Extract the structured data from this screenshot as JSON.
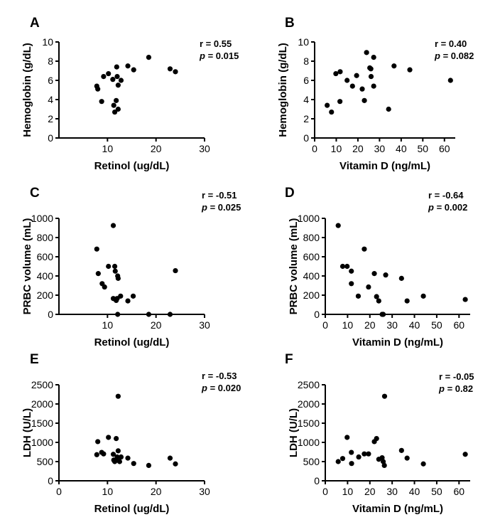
{
  "chart_data": [
    {
      "panel": "A",
      "type": "scatter",
      "xlabel": "Retinol (ug/dL)",
      "ylabel": "Hemoglobin (g/dL)",
      "xlim": [
        0,
        30
      ],
      "ylim": [
        0,
        10
      ],
      "xticks": [
        10,
        20,
        30
      ],
      "yticks": [
        0,
        2,
        4,
        6,
        8,
        10
      ],
      "stats": {
        "r": "r = 0.55",
        "p_label": "p",
        "p_value": " = 0.015"
      },
      "points": [
        [
          7.8,
          5.4
        ],
        [
          8.0,
          5.1
        ],
        [
          8.8,
          3.8
        ],
        [
          9.2,
          6.4
        ],
        [
          10.2,
          6.7
        ],
        [
          11.1,
          6.1
        ],
        [
          11.3,
          3.4
        ],
        [
          11.5,
          2.7
        ],
        [
          11.8,
          3.9
        ],
        [
          11.9,
          7.4
        ],
        [
          12.0,
          6.4
        ],
        [
          12.2,
          5.5
        ],
        [
          12.2,
          3.0
        ],
        [
          12.8,
          6.0
        ],
        [
          14.2,
          7.5
        ],
        [
          15.4,
          7.1
        ],
        [
          18.5,
          8.4
        ],
        [
          22.9,
          7.2
        ],
        [
          24.0,
          6.9
        ]
      ]
    },
    {
      "panel": "B",
      "type": "scatter",
      "xlabel": "Vitamin D (ng/mL)",
      "ylabel": "Hemoglobin (g/dL)",
      "xlim": [
        0,
        65
      ],
      "ylim": [
        0,
        10
      ],
      "xticks": [
        0,
        10,
        20,
        30,
        40,
        50,
        60
      ],
      "yticks": [
        0,
        2,
        4,
        6,
        8,
        10
      ],
      "stats": {
        "r": "r = 0.40",
        "p_label": "p",
        "p_value": " = 0.082"
      },
      "points": [
        [
          5.8,
          3.4
        ],
        [
          7.8,
          2.7
        ],
        [
          9.8,
          6.7
        ],
        [
          11.8,
          6.9
        ],
        [
          11.7,
          3.8
        ],
        [
          15.0,
          6.0
        ],
        [
          17.5,
          5.4
        ],
        [
          19.4,
          6.5
        ],
        [
          22.0,
          5.1
        ],
        [
          23.0,
          3.9
        ],
        [
          24.0,
          8.9
        ],
        [
          25.5,
          7.3
        ],
        [
          26.0,
          7.2
        ],
        [
          26.1,
          6.4
        ],
        [
          27.3,
          8.4
        ],
        [
          27.3,
          5.4
        ],
        [
          34.2,
          3.0
        ],
        [
          36.7,
          7.5
        ],
        [
          44.0,
          7.1
        ],
        [
          62.8,
          6.0
        ]
      ]
    },
    {
      "panel": "C",
      "type": "scatter",
      "xlabel": "Retinol (ug/dL)",
      "ylabel": "PRBC volume (mL)",
      "xlim": [
        0,
        30
      ],
      "ylim": [
        0,
        1000
      ],
      "xticks": [
        10,
        20,
        30
      ],
      "yticks": [
        0,
        200,
        400,
        600,
        800,
        1000
      ],
      "stats": {
        "r": "r = -0.51",
        "p_label": "p",
        "p_value": " = 0.025"
      },
      "points": [
        [
          7.8,
          680
        ],
        [
          8.1,
          425
        ],
        [
          8.9,
          320
        ],
        [
          9.4,
          285
        ],
        [
          10.2,
          500
        ],
        [
          11.2,
          925
        ],
        [
          11.2,
          165
        ],
        [
          11.5,
          500
        ],
        [
          11.6,
          450
        ],
        [
          11.8,
          145
        ],
        [
          12.0,
          165
        ],
        [
          12.1,
          400
        ],
        [
          12.1,
          0
        ],
        [
          12.2,
          375
        ],
        [
          12.7,
          190
        ],
        [
          14.2,
          140
        ],
        [
          15.3,
          190
        ],
        [
          18.5,
          0
        ],
        [
          22.9,
          0
        ],
        [
          24.0,
          455
        ]
      ]
    },
    {
      "panel": "D",
      "type": "scatter",
      "xlabel": "Vitamin D (ng/mL)",
      "ylabel": "PRBC volume (mL)",
      "xlim": [
        0,
        65
      ],
      "ylim": [
        0,
        1000
      ],
      "xticks": [
        0,
        10,
        20,
        30,
        40,
        50,
        60
      ],
      "yticks": [
        0,
        200,
        400,
        600,
        800,
        1000
      ],
      "stats": {
        "r": "r = -0.64",
        "p_label": "p",
        "p_value": " = 0.002"
      },
      "points": [
        [
          5.8,
          925
        ],
        [
          7.8,
          500
        ],
        [
          9.8,
          500
        ],
        [
          11.7,
          450
        ],
        [
          11.7,
          320
        ],
        [
          14.8,
          190
        ],
        [
          17.5,
          680
        ],
        [
          19.4,
          285
        ],
        [
          22.0,
          425
        ],
        [
          23.0,
          185
        ],
        [
          24.0,
          140
        ],
        [
          25.5,
          0
        ],
        [
          26.0,
          0
        ],
        [
          27.1,
          410
        ],
        [
          34.2,
          375
        ],
        [
          36.7,
          140
        ],
        [
          44.0,
          190
        ],
        [
          62.8,
          155
        ]
      ]
    },
    {
      "panel": "E",
      "type": "scatter",
      "xlabel": "Retinol (ug/dL)",
      "ylabel": "LDH (U/L)",
      "xlim": [
        0,
        30
      ],
      "ylim": [
        0,
        2500
      ],
      "xticks": [
        0,
        10,
        20,
        30
      ],
      "yticks": [
        0,
        500,
        1000,
        1500,
        2000,
        2500
      ],
      "stats": {
        "r": "r = -0.53",
        "p_label": "p",
        "p_value": " = 0.020"
      },
      "points": [
        [
          7.8,
          680
        ],
        [
          8.0,
          1020
        ],
        [
          8.8,
          740
        ],
        [
          9.2,
          700
        ],
        [
          10.2,
          1130
        ],
        [
          11.2,
          690
        ],
        [
          11.3,
          540
        ],
        [
          11.5,
          500
        ],
        [
          11.8,
          1100
        ],
        [
          11.9,
          560
        ],
        [
          12.0,
          620
        ],
        [
          12.2,
          2200
        ],
        [
          12.2,
          780
        ],
        [
          12.5,
          500
        ],
        [
          12.8,
          620
        ],
        [
          14.2,
          590
        ],
        [
          15.4,
          450
        ],
        [
          18.5,
          400
        ],
        [
          22.9,
          590
        ],
        [
          24.0,
          440
        ]
      ]
    },
    {
      "panel": "F",
      "type": "scatter",
      "xlabel": "Vitamin D (ng/mL)",
      "ylabel": "LDH (U/L)",
      "xlim": [
        0,
        65
      ],
      "ylim": [
        0,
        2500
      ],
      "xticks": [
        0,
        10,
        20,
        30,
        40,
        50,
        60
      ],
      "yticks": [
        0,
        500,
        1000,
        1500,
        2000,
        2500
      ],
      "stats": {
        "r": "r = -0.05",
        "p_label": "p",
        "p_value": " = 0.82"
      },
      "points": [
        [
          5.8,
          500
        ],
        [
          7.8,
          580
        ],
        [
          9.8,
          1130
        ],
        [
          11.7,
          740
        ],
        [
          11.8,
          450
        ],
        [
          15.0,
          620
        ],
        [
          17.5,
          700
        ],
        [
          19.4,
          700
        ],
        [
          22.0,
          1020
        ],
        [
          23.0,
          1100
        ],
        [
          24.0,
          560
        ],
        [
          25.5,
          600
        ],
        [
          26.0,
          500
        ],
        [
          26.5,
          400
        ],
        [
          26.6,
          2200
        ],
        [
          34.2,
          790
        ],
        [
          36.7,
          590
        ],
        [
          44.0,
          440
        ],
        [
          62.8,
          690
        ]
      ]
    }
  ]
}
